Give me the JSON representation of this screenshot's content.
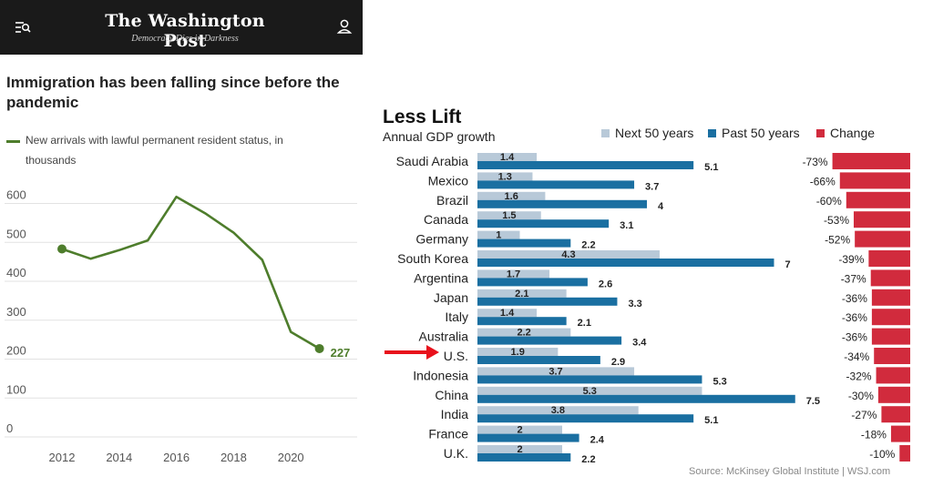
{
  "header": {
    "masthead": "The Washington Post",
    "tagline": "Democracy Dies in Darkness",
    "menu_icon": "menu-search-icon",
    "user_icon": "user-icon",
    "background": "#1a1a1a"
  },
  "left_chart": {
    "title": "Immigration has been falling since before the pandemic",
    "subtitle": "New arrivals with lawful permanent resident status, in thousands",
    "end_label": "227"
  },
  "right_chart": {
    "title": "Less Lift",
    "subtitle": "Annual GDP growth",
    "legend": [
      "Next 50 years",
      "Past 50 years",
      "Change"
    ],
    "source": "Source: McKinsey Global Institute  |  WSJ.com",
    "highlight_arrow": "red-arrow-icon"
  },
  "colors": {
    "line_green": "#4e7d2c",
    "next50": "#b8c9d8",
    "past50": "#1a6fa1",
    "change": "#d12b3d",
    "arrow": "#e8111c"
  },
  "chart_data": [
    {
      "type": "line",
      "title": "Immigration has been falling since before the pandemic",
      "subtitle": "New arrivals with lawful permanent resident status, in thousands",
      "x": [
        2012,
        2013,
        2014,
        2015,
        2016,
        2017,
        2018,
        2019,
        2020,
        2021
      ],
      "series": [
        {
          "name": "New arrivals with lawful permanent resident status, in thousands",
          "values": [
            483,
            458,
            480,
            505,
            617,
            575,
            525,
            455,
            270,
            227
          ]
        }
      ],
      "xticks": [
        2012,
        2014,
        2016,
        2018,
        2020
      ],
      "yticks": [
        0,
        100,
        200,
        300,
        400,
        500,
        600
      ],
      "ylim": [
        0,
        650
      ],
      "end_label": "227",
      "grid": "horizontal"
    },
    {
      "type": "bar",
      "orientation": "horizontal",
      "title": "Less Lift",
      "subtitle": "Annual GDP growth",
      "categories": [
        "Saudi Arabia",
        "Mexico",
        "Brazil",
        "Canada",
        "Germany",
        "South Korea",
        "Argentina",
        "Japan",
        "Italy",
        "Australia",
        "U.S.",
        "Indonesia",
        "China",
        "India",
        "France",
        "U.K."
      ],
      "series": [
        {
          "name": "Next 50 years",
          "values": [
            1.4,
            1.3,
            1.6,
            1.5,
            1,
            4.3,
            1.7,
            2.1,
            1.4,
            2.2,
            1.9,
            3.7,
            5.3,
            3.8,
            2,
            2
          ],
          "labels": [
            "1.4",
            "1.3",
            "1.6",
            "1.5",
            "1",
            "4.3",
            "1.7",
            "2.1",
            "1.4",
            "2.2",
            "1.9",
            "3.7",
            "5.3",
            "3.8",
            "2",
            "2"
          ]
        },
        {
          "name": "Past 50 years",
          "values": [
            5.1,
            3.7,
            4,
            3.1,
            2.2,
            7,
            2.6,
            3.3,
            2.1,
            3.4,
            2.9,
            5.3,
            7.5,
            5.1,
            2.4,
            2.2
          ],
          "labels": [
            "5.1",
            "3.7",
            "4",
            "3.1",
            "2.2",
            "7",
            "2.6",
            "3.3",
            "2.1",
            "3.4",
            "2.9",
            "5.3",
            "7.5",
            "5.1",
            "2.4",
            "2.2"
          ]
        },
        {
          "name": "Change",
          "values": [
            -73,
            -66,
            -60,
            -53,
            -52,
            -39,
            -37,
            -36,
            -36,
            -36,
            -34,
            -32,
            -30,
            -27,
            -18,
            -10
          ],
          "labels": [
            "-73%",
            "-66%",
            "-60%",
            "-53%",
            "-52%",
            "-39%",
            "-37%",
            "-36%",
            "-36%",
            "-36%",
            "-34%",
            "-32%",
            "-30%",
            "-27%",
            "-18%",
            "-10%"
          ]
        }
      ],
      "highlight_category": "U.S.",
      "legend_position": "top"
    }
  ]
}
